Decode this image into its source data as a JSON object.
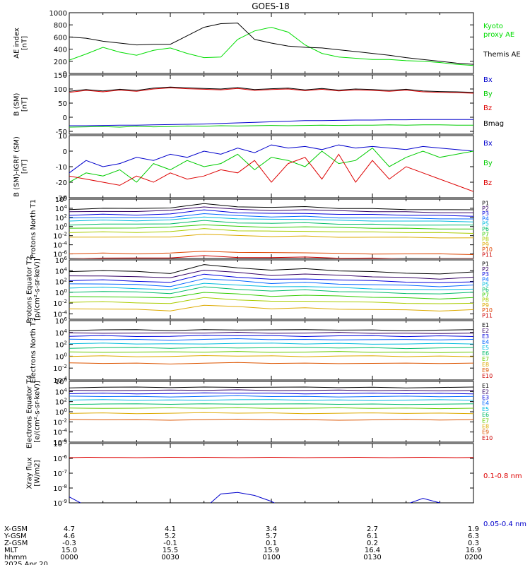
{
  "title": "GOES-18",
  "chart_data": [
    {
      "type": "line",
      "ylabel": "AE index [nT]",
      "yticks": [
        "1000",
        "800",
        "600",
        "400",
        "200",
        "0"
      ],
      "ylim": [
        0,
        1000
      ],
      "x": [
        0,
        5,
        10,
        15,
        20,
        25,
        30,
        35,
        40,
        45,
        50,
        55,
        60,
        65,
        70,
        75,
        80,
        85,
        90,
        95,
        100,
        105,
        110,
        115,
        120
      ],
      "series": [
        {
          "name": "Kyoto proxy AE",
          "color": "#00dd00",
          "values": [
            220,
            320,
            430,
            350,
            300,
            380,
            420,
            330,
            260,
            270,
            560,
            700,
            760,
            680,
            470,
            330,
            270,
            250,
            230,
            230,
            210,
            200,
            180,
            150,
            130
          ]
        },
        {
          "name": "Themis AE",
          "color": "#000000",
          "values": [
            600,
            580,
            530,
            500,
            470,
            480,
            480,
            620,
            760,
            820,
            830,
            560,
            500,
            450,
            430,
            420,
            390,
            360,
            330,
            300,
            260,
            230,
            200,
            170,
            150
          ]
        }
      ]
    },
    {
      "type": "line",
      "ylabel": "B (SM) [nT]",
      "yticks": [
        "150",
        "100",
        "50",
        "0",
        "-50"
      ],
      "ylim": [
        -60,
        150
      ],
      "x": [
        0,
        5,
        10,
        15,
        20,
        25,
        30,
        35,
        40,
        45,
        50,
        55,
        60,
        65,
        70,
        75,
        80,
        85,
        90,
        95,
        100,
        105,
        110,
        115,
        120
      ],
      "series": [
        {
          "name": "Bx",
          "color": "#0000cc",
          "values": [
            -30,
            -30,
            -29,
            -28,
            -28,
            -27,
            -26,
            -25,
            -24,
            -22,
            -20,
            -18,
            -16,
            -14,
            -12,
            -12,
            -11,
            -10,
            -10,
            -9,
            -9,
            -8,
            -8,
            -8,
            -8
          ]
        },
        {
          "name": "By",
          "color": "#00cc00",
          "values": [
            -35,
            -34,
            -33,
            -35,
            -32,
            -34,
            -33,
            -31,
            -32,
            -30,
            -31,
            -30,
            -29,
            -30,
            -29,
            -28,
            -29,
            -28,
            -28,
            -27,
            -28,
            -27,
            -27,
            -28,
            -28
          ]
        },
        {
          "name": "Bz",
          "color": "#dd0000",
          "values": [
            88,
            95,
            90,
            96,
            92,
            100,
            104,
            101,
            99,
            97,
            102,
            95,
            98,
            100,
            94,
            99,
            93,
            97,
            95,
            92,
            96,
            90,
            88,
            87,
            85
          ]
        },
        {
          "name": "Bmag",
          "color": "#000000",
          "values": [
            92,
            98,
            93,
            99,
            95,
            103,
            107,
            104,
            102,
            100,
            105,
            98,
            101,
            103,
            97,
            102,
            96,
            100,
            98,
            95,
            99,
            93,
            91,
            90,
            88
          ]
        }
      ]
    },
    {
      "type": "line",
      "ylabel": "B (SM)-IGRF (SM) [nT]",
      "yticks": [
        "10",
        "0",
        "-10",
        "-20",
        "-30"
      ],
      "ylim": [
        -30,
        10
      ],
      "x": [
        0,
        5,
        10,
        15,
        20,
        25,
        30,
        35,
        40,
        45,
        50,
        55,
        60,
        65,
        70,
        75,
        80,
        85,
        90,
        95,
        100,
        105,
        110,
        115,
        120
      ],
      "series": [
        {
          "name": "Bx",
          "color": "#0000cc",
          "values": [
            -14,
            -6,
            -10,
            -8,
            -4,
            -6,
            -2,
            -4,
            0,
            -2,
            2,
            -1,
            4,
            2,
            3,
            1,
            4,
            2,
            3,
            2,
            1,
            3,
            2,
            1,
            0
          ]
        },
        {
          "name": "By",
          "color": "#00cc00",
          "values": [
            -20,
            -14,
            -16,
            -12,
            -20,
            -8,
            -12,
            -6,
            -10,
            -8,
            -2,
            -12,
            -4,
            -6,
            -10,
            0,
            -8,
            -6,
            2,
            -10,
            -4,
            0,
            -4,
            -2,
            0
          ]
        },
        {
          "name": "Bz",
          "color": "#dd0000",
          "values": [
            -16,
            -18,
            -20,
            -22,
            -16,
            -20,
            -14,
            -18,
            -16,
            -12,
            -14,
            -6,
            -20,
            -8,
            -4,
            -18,
            -2,
            -20,
            -6,
            -18,
            -10,
            -14,
            -18,
            -22,
            -26
          ]
        }
      ]
    },
    {
      "type": "line",
      "ylabel": "Protons North T1",
      "log": true,
      "ylim_exp": [
        -7,
        6
      ],
      "yticks": [
        "10^6",
        "10^4",
        "10^2",
        "10^0",
        "10^-2",
        "10^-4",
        "10^-6"
      ],
      "x": [
        0,
        10,
        20,
        30,
        40,
        50,
        60,
        70,
        80,
        90,
        100,
        110,
        120
      ],
      "channel_labels": [
        "P1",
        "P2",
        "P3",
        "P4",
        "P5",
        "P6",
        "P7",
        "P8",
        "P9",
        "P10",
        "P11"
      ],
      "channel_colors": [
        "#000000",
        "#330066",
        "#0000dd",
        "#0066ff",
        "#00bbdd",
        "#00bb66",
        "#33cc00",
        "#aacc00",
        "#ddaa00",
        "#dd4400",
        "#cc0000"
      ],
      "channel_base": [
        3.8,
        3.2,
        2.5,
        1.8,
        1.2,
        0.4,
        -0.4,
        -1.3,
        -2.4,
        -6,
        -7
      ],
      "bump": [
        0,
        0.2,
        0.1,
        0.3,
        1.2,
        0.6,
        0.4,
        0.5,
        0.2,
        0.1,
        0,
        -0.1,
        -0.2
      ]
    },
    {
      "type": "line",
      "ylabel": "Protons Equator T2 [p/(cm²-s-sr-keV)]",
      "log": true,
      "ylim_exp": [
        -5,
        6
      ],
      "yticks": [
        "10^6",
        "10^4",
        "10^2",
        "10^0",
        "10^-2",
        "10^-4"
      ],
      "x": [
        0,
        10,
        20,
        30,
        40,
        50,
        60,
        70,
        80,
        90,
        100,
        110,
        120
      ],
      "channel_labels": [
        "P1",
        "P2",
        "P3",
        "P4",
        "P5",
        "P6",
        "P7",
        "P8",
        "P9",
        "P10",
        "P11"
      ],
      "channel_colors": [
        "#000000",
        "#330066",
        "#0000dd",
        "#0066ff",
        "#00bbdd",
        "#00bb66",
        "#33cc00",
        "#aacc00",
        "#ddaa00",
        "#dd4400",
        "#cc0000"
      ],
      "channel_base": [
        3.8,
        2.9,
        2.1,
        1.4,
        0.7,
        0,
        -0.9,
        -1.9,
        -3.2,
        -6,
        -7
      ],
      "bump": [
        0.1,
        0.2,
        0,
        -0.3,
        1.3,
        0.8,
        0.3,
        0.5,
        0.2,
        0,
        -0.2,
        -0.4,
        -0.1
      ]
    },
    {
      "type": "line",
      "ylabel": "Electrons North T3",
      "log": true,
      "ylim_exp": [
        -4,
        6
      ],
      "yticks": [
        "10^6",
        "10^4",
        "10^2",
        "10^0",
        "10^-2",
        "10^-4"
      ],
      "x": [
        0,
        10,
        20,
        30,
        40,
        50,
        60,
        70,
        80,
        90,
        100,
        110,
        120
      ],
      "channel_labels": [
        "E1",
        "E2",
        "E3",
        "E4",
        "E5",
        "E6",
        "E7",
        "E8",
        "E9",
        "E10"
      ],
      "channel_colors": [
        "#000000",
        "#330066",
        "#0000dd",
        "#0066ff",
        "#00bbdd",
        "#00bb66",
        "#66cc00",
        "#ddaa00",
        "#dd5500",
        "#cc0000"
      ],
      "channel_base": [
        4.4,
        3.9,
        3.4,
        2.8,
        2.1,
        1.4,
        0.7,
        0,
        -1.2,
        -6
      ],
      "bump": [
        0,
        0.05,
        0,
        -0.05,
        0.05,
        0.1,
        0.05,
        0,
        0.05,
        0,
        -0.05,
        0,
        0
      ]
    },
    {
      "type": "line",
      "ylabel": "Electrons Equator T4 [e/(cm²-s-sr-keV)]",
      "log": true,
      "ylim_exp": [
        -6,
        6
      ],
      "yticks": [
        "10^6",
        "10^4",
        "10^2",
        "10^0",
        "10^-2",
        "10^-4",
        "10^-6"
      ],
      "x": [
        0,
        10,
        20,
        30,
        40,
        50,
        60,
        70,
        80,
        90,
        100,
        110,
        120
      ],
      "channel_labels": [
        "E1",
        "E2",
        "E3",
        "E4",
        "E5",
        "E6",
        "E7",
        "E8",
        "E9",
        "E10"
      ],
      "channel_colors": [
        "#000000",
        "#330066",
        "#0000dd",
        "#0066ff",
        "#00bbdd",
        "#00bb66",
        "#66cc00",
        "#ddaa00",
        "#dd5500",
        "#cc0000"
      ],
      "channel_base": [
        4.8,
        4.2,
        3.6,
        3,
        2.3,
        1.5,
        0.7,
        -0.3,
        -1.6,
        -7
      ],
      "bump": [
        0,
        0.05,
        0,
        0,
        0.05,
        0.1,
        0.05,
        0,
        0,
        0,
        0,
        0,
        0
      ]
    },
    {
      "type": "line",
      "ylabel": "Xray flux [W/m2]",
      "log": true,
      "ylim_exp": [
        -9,
        -5
      ],
      "yticks": [
        "10^-5",
        "10^-6",
        "10^-7",
        "10^-8",
        "10^-9"
      ],
      "x": [
        0,
        5,
        10,
        15,
        20,
        25,
        30,
        35,
        40,
        45,
        50,
        55,
        60,
        65,
        70,
        75,
        80,
        85,
        90,
        95,
        100,
        105,
        110,
        115,
        120
      ],
      "series": [
        {
          "name": "0.1-0.8 nm",
          "color": "#dd0000",
          "values": [
            -5.95,
            -5.93,
            -5.94,
            -5.94,
            -5.95,
            -5.94,
            -5.93,
            -5.94,
            -5.93,
            -5.94,
            -5.95,
            -5.94,
            -5.93,
            -5.94,
            -5.95,
            -5.94,
            -5.94,
            -5.93,
            -5.94,
            -5.95,
            -5.94,
            -5.93,
            -5.94,
            -5.95,
            -5.94
          ]
        },
        {
          "name": "0.05-0.4 nm",
          "color": "#0000cc",
          "values": [
            -8.6,
            -9.2,
            -9.6,
            -9.8,
            -9.9,
            -9.6,
            -9.8,
            -9.7,
            -9.4,
            -8.4,
            -8.3,
            -8.5,
            -8.9,
            -9.5,
            -9.8,
            -9.9,
            -9.7,
            -9.9,
            -9.5,
            -9.8,
            -9.1,
            -8.7,
            -9.0,
            -9.6,
            -9.8
          ]
        }
      ]
    }
  ],
  "legends": [
    [
      {
        "text": "Kyoto",
        "color": "#00dd00"
      },
      {
        "text": "proxy AE",
        "color": "#00dd00"
      },
      {
        "text": "Themis AE",
        "color": "#000000"
      }
    ],
    [
      {
        "text": "Bx",
        "color": "#0000cc"
      },
      {
        "text": "By",
        "color": "#00cc00"
      },
      {
        "text": "Bz",
        "color": "#dd0000"
      },
      {
        "text": "Bmag",
        "color": "#000000"
      }
    ],
    [
      {
        "text": "Bx",
        "color": "#0000cc"
      },
      {
        "text": "By",
        "color": "#00cc00"
      },
      {
        "text": "Bz",
        "color": "#dd0000"
      }
    ],
    [],
    [],
    [],
    [],
    [
      {
        "text": "0.1-0.8 nm",
        "color": "#dd0000"
      },
      {
        "text": "0.05-0.4 nm",
        "color": "#0000cc"
      }
    ]
  ],
  "ephemeris": {
    "row_labels": [
      "X-GSM",
      "Y-GSM",
      "Z-GSM",
      "MLT",
      "hhmm",
      "2025 Apr 20"
    ],
    "columns": [
      [
        "4.7",
        "4.6",
        "-0.3",
        "15.0",
        "0000"
      ],
      [
        "4.1",
        "5.2",
        "-0.1",
        "15.5",
        "0030"
      ],
      [
        "3.4",
        "5.7",
        "0.1",
        "15.9",
        "0100"
      ],
      [
        "2.7",
        "6.1",
        "0.2",
        "16.4",
        "0130"
      ],
      [
        "1.9",
        "6.3",
        "0.3",
        "16.9",
        "0200"
      ]
    ]
  }
}
